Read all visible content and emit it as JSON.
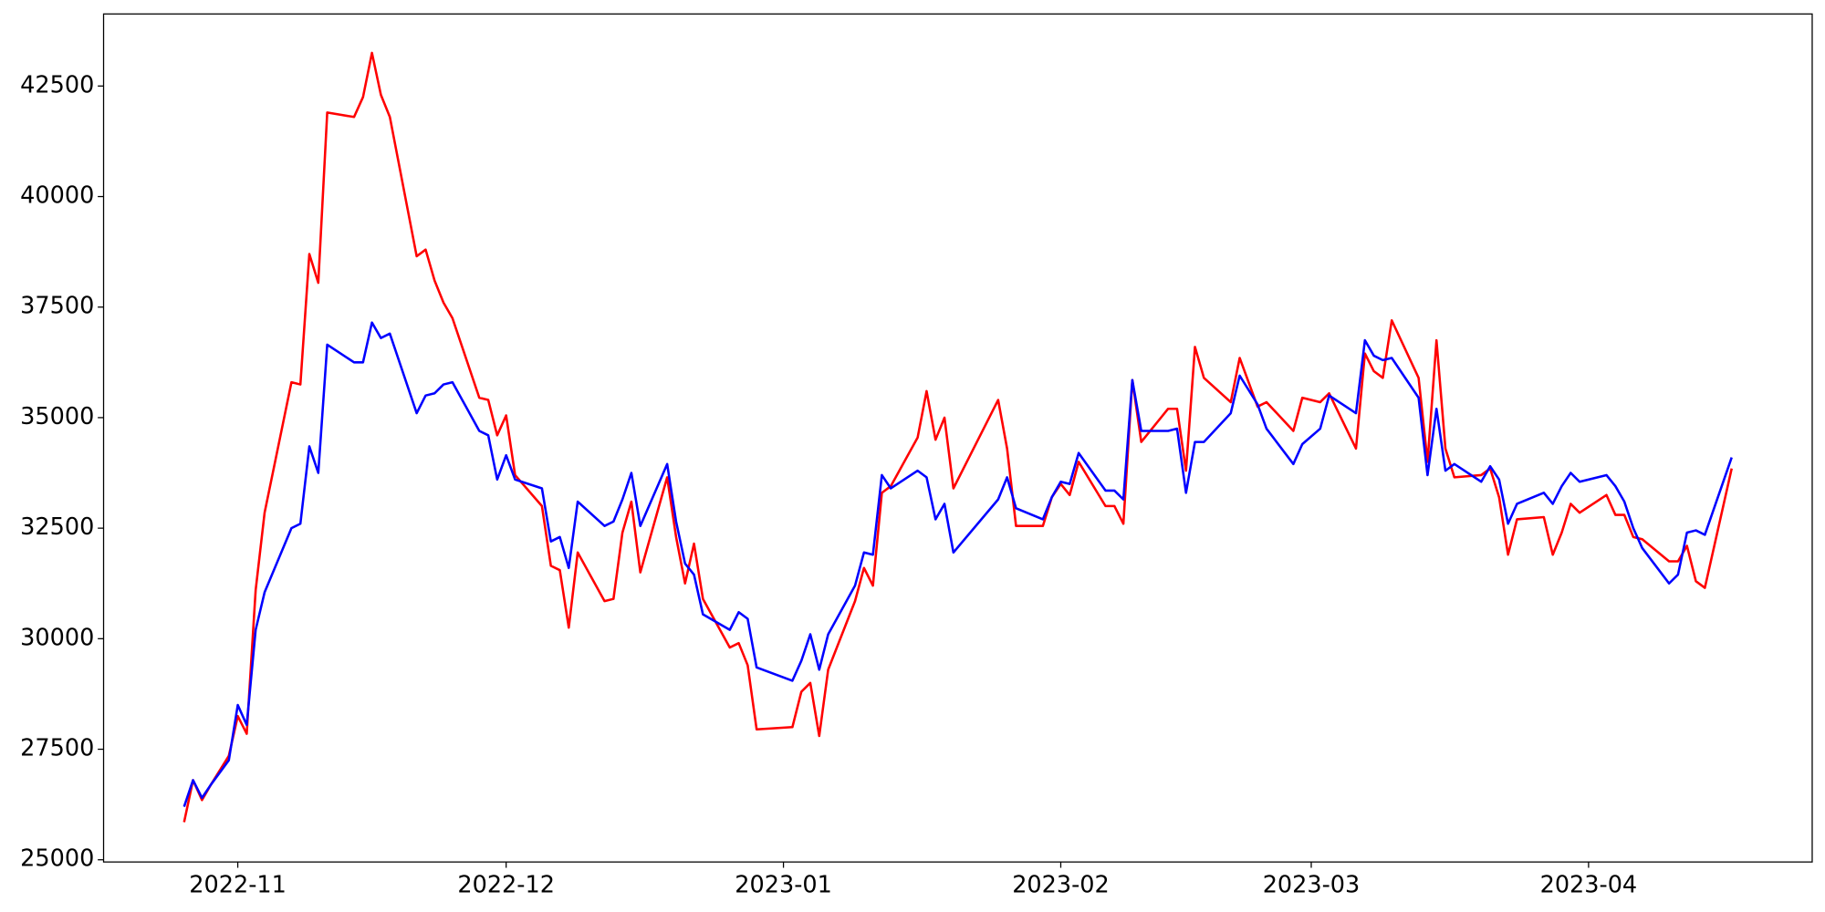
{
  "chart_data": {
    "type": "line",
    "x": [
      "2022-10-26",
      "2022-10-27",
      "2022-10-28",
      "2022-10-29",
      "2022-10-31",
      "2022-11-01",
      "2022-11-02",
      "2022-11-03",
      "2022-11-04",
      "2022-11-07",
      "2022-11-08",
      "2022-11-09",
      "2022-11-10",
      "2022-11-11",
      "2022-11-14",
      "2022-11-15",
      "2022-11-16",
      "2022-11-17",
      "2022-11-18",
      "2022-11-21",
      "2022-11-22",
      "2022-11-23",
      "2022-11-24",
      "2022-11-25",
      "2022-11-28",
      "2022-11-29",
      "2022-11-30",
      "2022-12-01",
      "2022-12-02",
      "2022-12-05",
      "2022-12-06",
      "2022-12-07",
      "2022-12-08",
      "2022-12-09",
      "2022-12-12",
      "2022-12-13",
      "2022-12-14",
      "2022-12-15",
      "2022-12-16",
      "2022-12-19",
      "2022-12-20",
      "2022-12-21",
      "2022-12-22",
      "2022-12-23",
      "2022-12-26",
      "2022-12-27",
      "2022-12-28",
      "2022-12-29",
      "2023-01-02",
      "2023-01-03",
      "2023-01-04",
      "2023-01-05",
      "2023-01-06",
      "2023-01-09",
      "2023-01-10",
      "2023-01-11",
      "2023-01-12",
      "2023-01-13",
      "2023-01-16",
      "2023-01-17",
      "2023-01-18",
      "2023-01-19",
      "2023-01-20",
      "2023-01-25",
      "2023-01-26",
      "2023-01-27",
      "2023-01-30",
      "2023-01-31",
      "2023-02-01",
      "2023-02-02",
      "2023-02-03",
      "2023-02-06",
      "2023-02-07",
      "2023-02-08",
      "2023-02-09",
      "2023-02-10",
      "2023-02-13",
      "2023-02-14",
      "2023-02-15",
      "2023-02-16",
      "2023-02-17",
      "2023-02-20",
      "2023-02-21",
      "2023-02-23",
      "2023-02-24",
      "2023-02-27",
      "2023-02-28",
      "2023-03-02",
      "2023-03-03",
      "2023-03-06",
      "2023-03-07",
      "2023-03-08",
      "2023-03-09",
      "2023-03-10",
      "2023-03-13",
      "2023-03-14",
      "2023-03-15",
      "2023-03-16",
      "2023-03-17",
      "2023-03-20",
      "2023-03-21",
      "2023-03-22",
      "2023-03-23",
      "2023-03-24",
      "2023-03-27",
      "2023-03-28",
      "2023-03-29",
      "2023-03-30",
      "2023-03-31",
      "2023-04-03",
      "2023-04-04",
      "2023-04-05",
      "2023-04-06",
      "2023-04-07",
      "2023-04-10",
      "2023-04-11",
      "2023-04-12",
      "2023-04-13",
      "2023-04-14",
      "2023-04-17"
    ],
    "series": [
      {
        "color": "#ff0000",
        "values": [
          25850,
          26800,
          26350,
          26700,
          27350,
          28250,
          27850,
          31100,
          32850,
          35800,
          35750,
          38700,
          38050,
          41900,
          41800,
          42250,
          43250,
          42300,
          41800,
          38650,
          38800,
          38100,
          37600,
          37250,
          35450,
          35400,
          34600,
          35050,
          33700,
          33000,
          31650,
          31550,
          30250,
          31950,
          30850,
          30900,
          32400,
          33100,
          31500,
          33650,
          32300,
          31250,
          32150,
          30900,
          29800,
          29900,
          29400,
          27950,
          28000,
          28800,
          29000,
          27800,
          29300,
          30850,
          31600,
          31200,
          33300,
          33450,
          34550,
          35600,
          34500,
          35000,
          33400,
          35400,
          34300,
          32550,
          32550,
          33200,
          33500,
          33250,
          34000,
          33000,
          33000,
          32600,
          35850,
          34450,
          35200,
          35200,
          33800,
          36600,
          35900,
          35350,
          36350,
          35250,
          35350,
          34700,
          35450,
          35350,
          35550,
          34300,
          36450,
          36050,
          35900,
          37200,
          35900,
          34000,
          36750,
          34300,
          33650,
          33700,
          33850,
          33200,
          31900,
          32700,
          32750,
          31900,
          32400,
          33050,
          32850,
          33250,
          32800,
          32800,
          32300,
          32250,
          31750,
          31750,
          32100,
          31300,
          31150,
          33850
        ]
      },
      {
        "color": "#0000ff",
        "values": [
          26200,
          26800,
          26400,
          26700,
          27250,
          28500,
          28050,
          30200,
          31050,
          32500,
          32600,
          34350,
          33750,
          36650,
          36250,
          36250,
          37150,
          36800,
          36900,
          35100,
          35500,
          35550,
          35750,
          35800,
          34700,
          34600,
          33600,
          34150,
          33600,
          33400,
          32200,
          32300,
          31600,
          33100,
          32550,
          32650,
          33150,
          33750,
          32550,
          33950,
          32650,
          31700,
          31450,
          30550,
          30200,
          30600,
          30450,
          29350,
          29050,
          29500,
          30100,
          29300,
          30100,
          31200,
          31950,
          31900,
          33700,
          33400,
          33800,
          33650,
          32700,
          33050,
          31950,
          33150,
          33650,
          32950,
          32700,
          33200,
          33550,
          33500,
          34200,
          33350,
          33350,
          33150,
          35850,
          34700,
          34700,
          34750,
          33300,
          34450,
          34450,
          35100,
          35950,
          35300,
          34750,
          33950,
          34400,
          34750,
          35500,
          35100,
          36750,
          36400,
          36300,
          36350,
          35450,
          33700,
          35200,
          33800,
          33950,
          33550,
          33900,
          33600,
          32600,
          33050,
          33300,
          33050,
          33450,
          33750,
          33550,
          33700,
          33450,
          33100,
          32500,
          32050,
          31250,
          31450,
          32400,
          32450,
          32350,
          34100
        ]
      }
    ],
    "xlim": [
      "2022-10-17",
      "2023-04-26"
    ],
    "xticks": [
      {
        "value": "2022-11-01",
        "label": "2022-11"
      },
      {
        "value": "2022-12-01",
        "label": "2022-12"
      },
      {
        "value": "2023-01-01",
        "label": "2023-01"
      },
      {
        "value": "2023-02-01",
        "label": "2023-02"
      },
      {
        "value": "2023-03-01",
        "label": "2023-03"
      },
      {
        "value": "2023-04-01",
        "label": "2023-04"
      }
    ],
    "ylim": [
      24950,
      44130
    ],
    "yticks": [
      25000,
      27500,
      30000,
      32500,
      35000,
      37500,
      40000,
      42500
    ],
    "grid": false
  }
}
